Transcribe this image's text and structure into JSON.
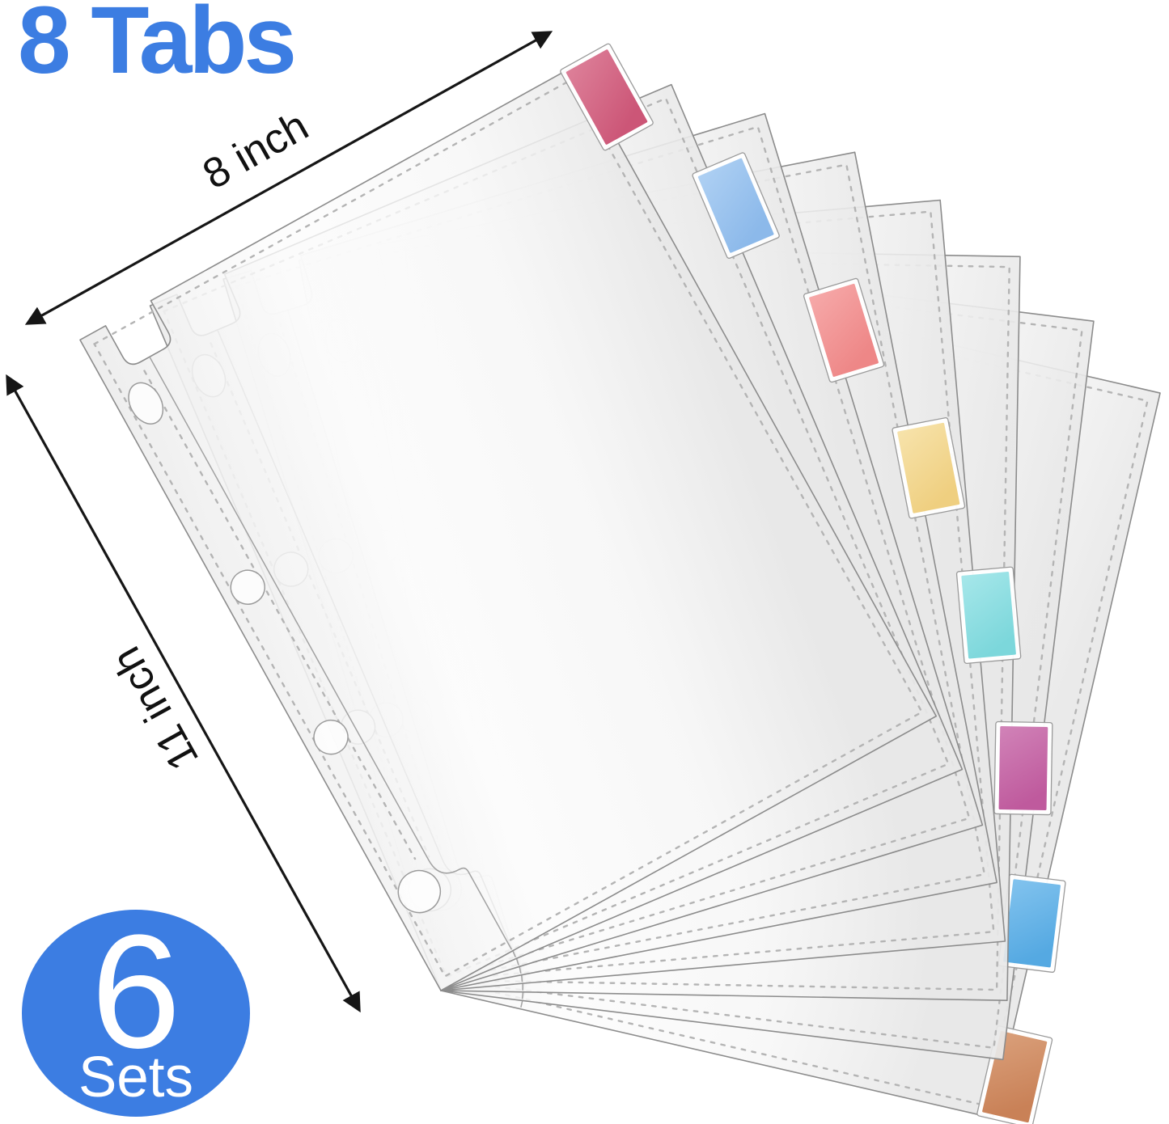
{
  "header": {
    "title": "8 Tabs"
  },
  "dims": {
    "width_label": "8 inch",
    "height_label": "11 inch"
  },
  "badge": {
    "number": "6",
    "label": "Sets"
  },
  "colors": {
    "accent_blue": "#3c7de2",
    "arrow_black": "#161616",
    "sheet_outline": "#8c8c8c",
    "stitch_gray": "#b4b4b4",
    "hole_outline": "#9b9b9b"
  },
  "sheets": {
    "count": 8,
    "tab_count_per_set": 8,
    "set_count": 6
  },
  "tabs": [
    {
      "name": "tab-1",
      "color": "#cc5677",
      "color_light": "#dd8099"
    },
    {
      "name": "tab-2",
      "color": "#8cb9ea",
      "color_light": "#aed0f3"
    },
    {
      "name": "tab-3",
      "color": "#ee8787",
      "color_light": "#f6a9a9"
    },
    {
      "name": "tab-4",
      "color": "#efcf80",
      "color_light": "#f7e3ab"
    },
    {
      "name": "tab-5",
      "color": "#7cd7db",
      "color_light": "#a6e7ea"
    },
    {
      "name": "tab-6",
      "color": "#bf5a9d",
      "color_light": "#d183b8"
    },
    {
      "name": "tab-7",
      "color": "#55a9e2",
      "color_light": "#82c3ee"
    },
    {
      "name": "tab-8",
      "color": "#c98157",
      "color_light": "#daa07b"
    }
  ]
}
